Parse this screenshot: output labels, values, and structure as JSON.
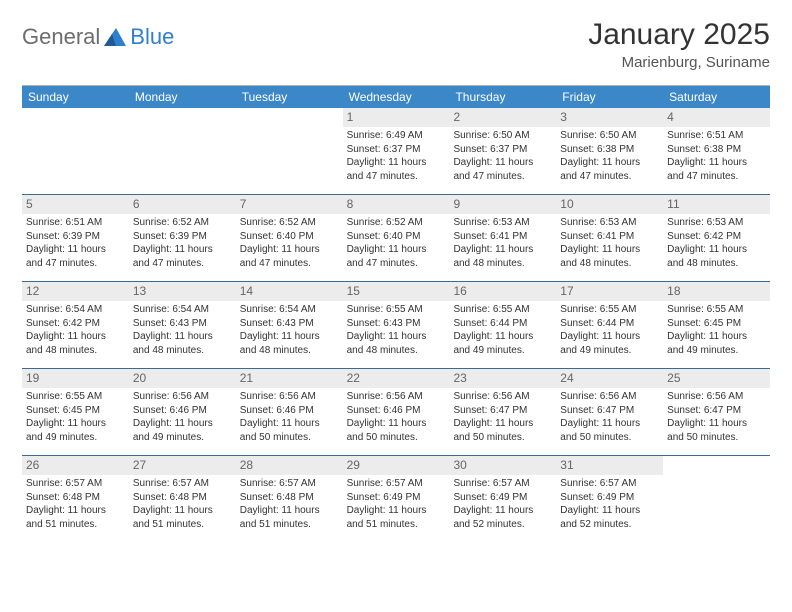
{
  "brand": {
    "part1": "General",
    "part2": "Blue"
  },
  "title": "January 2025",
  "location": "Marienburg, Suriname",
  "colors": {
    "header_bg": "#3b87c8",
    "header_text": "#ffffff",
    "daynum_bg": "#ececec",
    "daynum_text": "#666666",
    "row_border": "#3b6a97",
    "body_text": "#333333",
    "brand_gray": "#6d6d6d",
    "brand_blue": "#2f7fcf"
  },
  "weekdays": [
    "Sunday",
    "Monday",
    "Tuesday",
    "Wednesday",
    "Thursday",
    "Friday",
    "Saturday"
  ],
  "weeks": [
    [
      {
        "n": "",
        "sr": "",
        "ss": "",
        "dl": ""
      },
      {
        "n": "",
        "sr": "",
        "ss": "",
        "dl": ""
      },
      {
        "n": "",
        "sr": "",
        "ss": "",
        "dl": ""
      },
      {
        "n": "1",
        "sr": "Sunrise: 6:49 AM",
        "ss": "Sunset: 6:37 PM",
        "dl": "Daylight: 11 hours and 47 minutes."
      },
      {
        "n": "2",
        "sr": "Sunrise: 6:50 AM",
        "ss": "Sunset: 6:37 PM",
        "dl": "Daylight: 11 hours and 47 minutes."
      },
      {
        "n": "3",
        "sr": "Sunrise: 6:50 AM",
        "ss": "Sunset: 6:38 PM",
        "dl": "Daylight: 11 hours and 47 minutes."
      },
      {
        "n": "4",
        "sr": "Sunrise: 6:51 AM",
        "ss": "Sunset: 6:38 PM",
        "dl": "Daylight: 11 hours and 47 minutes."
      }
    ],
    [
      {
        "n": "5",
        "sr": "Sunrise: 6:51 AM",
        "ss": "Sunset: 6:39 PM",
        "dl": "Daylight: 11 hours and 47 minutes."
      },
      {
        "n": "6",
        "sr": "Sunrise: 6:52 AM",
        "ss": "Sunset: 6:39 PM",
        "dl": "Daylight: 11 hours and 47 minutes."
      },
      {
        "n": "7",
        "sr": "Sunrise: 6:52 AM",
        "ss": "Sunset: 6:40 PM",
        "dl": "Daylight: 11 hours and 47 minutes."
      },
      {
        "n": "8",
        "sr": "Sunrise: 6:52 AM",
        "ss": "Sunset: 6:40 PM",
        "dl": "Daylight: 11 hours and 47 minutes."
      },
      {
        "n": "9",
        "sr": "Sunrise: 6:53 AM",
        "ss": "Sunset: 6:41 PM",
        "dl": "Daylight: 11 hours and 48 minutes."
      },
      {
        "n": "10",
        "sr": "Sunrise: 6:53 AM",
        "ss": "Sunset: 6:41 PM",
        "dl": "Daylight: 11 hours and 48 minutes."
      },
      {
        "n": "11",
        "sr": "Sunrise: 6:53 AM",
        "ss": "Sunset: 6:42 PM",
        "dl": "Daylight: 11 hours and 48 minutes."
      }
    ],
    [
      {
        "n": "12",
        "sr": "Sunrise: 6:54 AM",
        "ss": "Sunset: 6:42 PM",
        "dl": "Daylight: 11 hours and 48 minutes."
      },
      {
        "n": "13",
        "sr": "Sunrise: 6:54 AM",
        "ss": "Sunset: 6:43 PM",
        "dl": "Daylight: 11 hours and 48 minutes."
      },
      {
        "n": "14",
        "sr": "Sunrise: 6:54 AM",
        "ss": "Sunset: 6:43 PM",
        "dl": "Daylight: 11 hours and 48 minutes."
      },
      {
        "n": "15",
        "sr": "Sunrise: 6:55 AM",
        "ss": "Sunset: 6:43 PM",
        "dl": "Daylight: 11 hours and 48 minutes."
      },
      {
        "n": "16",
        "sr": "Sunrise: 6:55 AM",
        "ss": "Sunset: 6:44 PM",
        "dl": "Daylight: 11 hours and 49 minutes."
      },
      {
        "n": "17",
        "sr": "Sunrise: 6:55 AM",
        "ss": "Sunset: 6:44 PM",
        "dl": "Daylight: 11 hours and 49 minutes."
      },
      {
        "n": "18",
        "sr": "Sunrise: 6:55 AM",
        "ss": "Sunset: 6:45 PM",
        "dl": "Daylight: 11 hours and 49 minutes."
      }
    ],
    [
      {
        "n": "19",
        "sr": "Sunrise: 6:55 AM",
        "ss": "Sunset: 6:45 PM",
        "dl": "Daylight: 11 hours and 49 minutes."
      },
      {
        "n": "20",
        "sr": "Sunrise: 6:56 AM",
        "ss": "Sunset: 6:46 PM",
        "dl": "Daylight: 11 hours and 49 minutes."
      },
      {
        "n": "21",
        "sr": "Sunrise: 6:56 AM",
        "ss": "Sunset: 6:46 PM",
        "dl": "Daylight: 11 hours and 50 minutes."
      },
      {
        "n": "22",
        "sr": "Sunrise: 6:56 AM",
        "ss": "Sunset: 6:46 PM",
        "dl": "Daylight: 11 hours and 50 minutes."
      },
      {
        "n": "23",
        "sr": "Sunrise: 6:56 AM",
        "ss": "Sunset: 6:47 PM",
        "dl": "Daylight: 11 hours and 50 minutes."
      },
      {
        "n": "24",
        "sr": "Sunrise: 6:56 AM",
        "ss": "Sunset: 6:47 PM",
        "dl": "Daylight: 11 hours and 50 minutes."
      },
      {
        "n": "25",
        "sr": "Sunrise: 6:56 AM",
        "ss": "Sunset: 6:47 PM",
        "dl": "Daylight: 11 hours and 50 minutes."
      }
    ],
    [
      {
        "n": "26",
        "sr": "Sunrise: 6:57 AM",
        "ss": "Sunset: 6:48 PM",
        "dl": "Daylight: 11 hours and 51 minutes."
      },
      {
        "n": "27",
        "sr": "Sunrise: 6:57 AM",
        "ss": "Sunset: 6:48 PM",
        "dl": "Daylight: 11 hours and 51 minutes."
      },
      {
        "n": "28",
        "sr": "Sunrise: 6:57 AM",
        "ss": "Sunset: 6:48 PM",
        "dl": "Daylight: 11 hours and 51 minutes."
      },
      {
        "n": "29",
        "sr": "Sunrise: 6:57 AM",
        "ss": "Sunset: 6:49 PM",
        "dl": "Daylight: 11 hours and 51 minutes."
      },
      {
        "n": "30",
        "sr": "Sunrise: 6:57 AM",
        "ss": "Sunset: 6:49 PM",
        "dl": "Daylight: 11 hours and 52 minutes."
      },
      {
        "n": "31",
        "sr": "Sunrise: 6:57 AM",
        "ss": "Sunset: 6:49 PM",
        "dl": "Daylight: 11 hours and 52 minutes."
      },
      {
        "n": "",
        "sr": "",
        "ss": "",
        "dl": ""
      }
    ]
  ]
}
